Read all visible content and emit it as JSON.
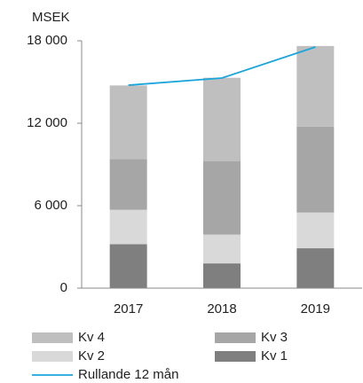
{
  "chart_data": {
    "type": "bar",
    "stacked": true,
    "ylabel": "MSEK",
    "categories": [
      "2017",
      "2018",
      "2019"
    ],
    "series": [
      {
        "name": "Kv 1",
        "color": "#7f7f7f",
        "values": [
          3200,
          1800,
          2900
        ]
      },
      {
        "name": "Kv 2",
        "color": "#d9d9d9",
        "values": [
          2500,
          2100,
          2600
        ]
      },
      {
        "name": "Kv 3",
        "color": "#a6a6a6",
        "values": [
          3700,
          5350,
          6250
        ]
      },
      {
        "name": "Kv 4",
        "color": "#bfbfbf",
        "values": [
          5350,
          6060,
          5870
        ]
      },
      {
        "name": "Rullande 12 mån",
        "type": "line",
        "color": "#1aa5dc",
        "values": [
          14770,
          15290,
          17550
        ]
      }
    ],
    "ylim": [
      0,
      18000
    ],
    "yticks": [
      0,
      {
        "value": 6000,
        "label": "6 000"
      },
      {
        "value": 12000,
        "label": "12 000"
      },
      {
        "value": 18000,
        "label": "18 000"
      }
    ]
  }
}
